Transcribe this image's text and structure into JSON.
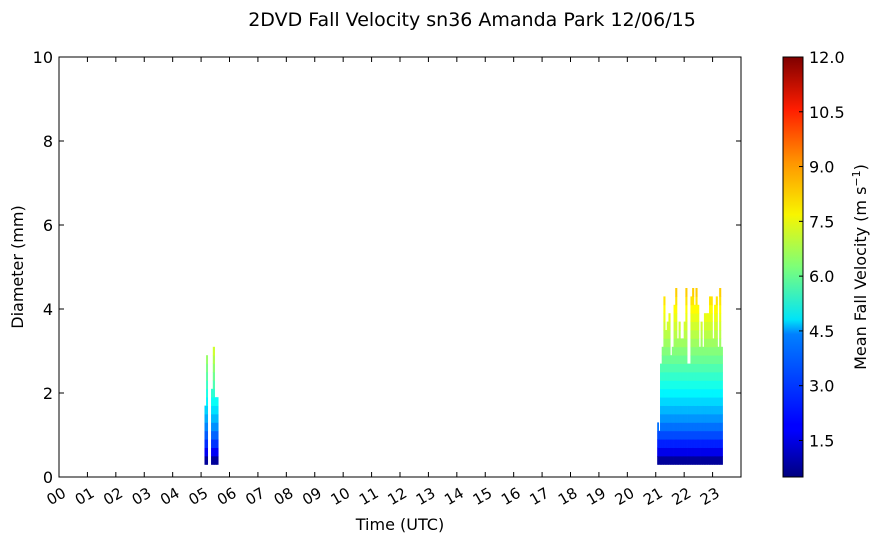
{
  "chart_data": {
    "type": "heatmap",
    "title": "2DVD Fall Velocity sn36 Amanda Park 12/06/15",
    "xlabel": "Time (UTC)",
    "ylabel": "Diameter (mm)",
    "xlim": [
      0,
      24
    ],
    "ylim": [
      0,
      10
    ],
    "x_tick_labels": [
      "00",
      "01",
      "02",
      "03",
      "04",
      "05",
      "06",
      "07",
      "08",
      "09",
      "10",
      "11",
      "12",
      "13",
      "14",
      "15",
      "16",
      "17",
      "18",
      "19",
      "20",
      "21",
      "22",
      "23"
    ],
    "y_tick_labels": [
      "0",
      "2",
      "4",
      "6",
      "8",
      "10"
    ],
    "colorbar": {
      "label": "Mean Fall Velocity (m s",
      "label_superscript": "−1",
      "label_close": ")",
      "range": [
        0.5,
        12.0
      ],
      "tick_labels": [
        "1.5",
        "3.0",
        "4.5",
        "6.0",
        "7.5",
        "9.0",
        "10.5",
        "12.0"
      ],
      "colormap": "jet"
    },
    "events": [
      {
        "start_hour": 5.12,
        "end_hour": 5.23,
        "max_diameter_mm": 3.0,
        "top_velocity": 7.0
      },
      {
        "start_hour": 5.35,
        "end_hour": 5.6,
        "max_diameter_mm": 3.0,
        "top_velocity": 7.3
      },
      {
        "start_hour": 21.05,
        "end_hour": 21.15,
        "max_diameter_mm": 1.5,
        "top_velocity": 4.0
      },
      {
        "start_hour": 21.15,
        "end_hour": 23.35,
        "max_diameter_mm": 4.5,
        "top_velocity": 8.5
      }
    ]
  }
}
